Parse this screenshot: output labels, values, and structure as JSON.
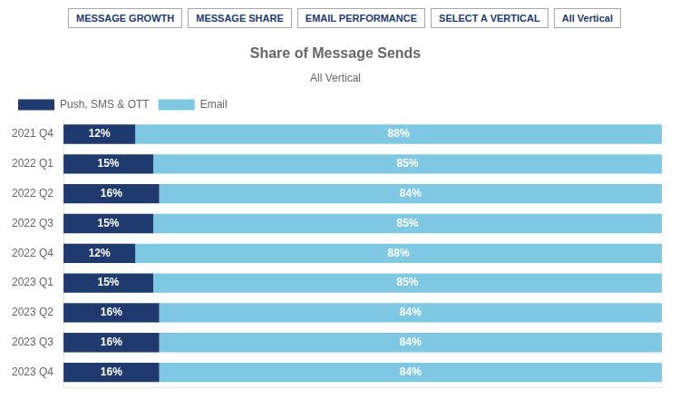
{
  "chart_data": {
    "type": "bar",
    "title": "Share of Message Sends",
    "subtitle": "All Vertical",
    "orientation": "horizontal",
    "stacked": true,
    "data_labels": true,
    "tick_labels": "y",
    "grid": false,
    "legend": "top",
    "annotations": [
      "MESSAGE GROWTH",
      "MESSAGE SHARE",
      "EMAIL PERFORMANCE",
      "SELECT A VERTICAL",
      "All Vertical"
    ],
    "categories": [
      "2021 Q4",
      "2022 Q1",
      "2022 Q2",
      "2022 Q3",
      "2022 Q4",
      "2023 Q1",
      "2023 Q2",
      "2023 Q3",
      "2023 Q4"
    ],
    "xlim": [
      0,
      100
    ],
    "series": [
      {
        "name": "Push, SMS & OTT",
        "color": "#1e3a6e",
        "values": [
          12,
          15,
          16,
          15,
          12,
          15,
          16,
          16,
          16
        ],
        "value_labels": [
          "12%",
          "15%",
          "16%",
          "15%",
          "12%",
          "15%",
          "16%",
          "16%",
          "16%"
        ]
      },
      {
        "name": "Email",
        "color": "#7ec8e3",
        "values": [
          88,
          85,
          84,
          85,
          88,
          85,
          84,
          84,
          84
        ],
        "value_labels": [
          "88%",
          "85%",
          "84%",
          "85%",
          "88%",
          "85%",
          "84%",
          "84%",
          "84%"
        ]
      }
    ]
  }
}
